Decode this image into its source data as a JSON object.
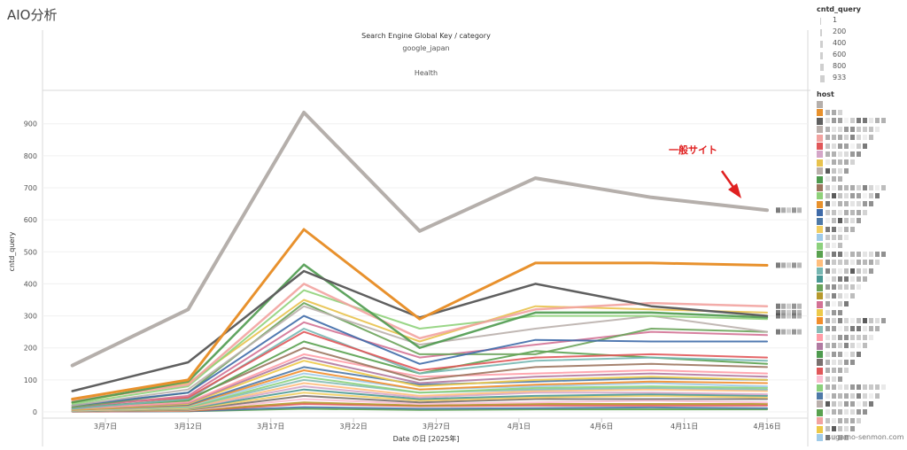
{
  "app": {
    "title": "AIO分析"
  },
  "chart_data": {
    "type": "line",
    "header": {
      "title": "Search Engine Global Key / category",
      "engine": "google_japan",
      "category": "Health"
    },
    "xlabel": "Date の日 [2025年]",
    "ylabel": "cntd_query",
    "ylim": [
      0,
      960
    ],
    "yticks": [
      0,
      100,
      200,
      300,
      400,
      500,
      600,
      700,
      800,
      900
    ],
    "x_dates": [
      "3月5日",
      "3月12日",
      "3月19日",
      "3月26日",
      "4月2日",
      "4月9日",
      "4月16日"
    ],
    "x_ticks": [
      {
        "date": "3月7日",
        "label": "3月7日"
      },
      {
        "date": "3月12日",
        "label": "3月12日"
      },
      {
        "date": "3月17日",
        "label": "3月17日"
      },
      {
        "date": "3月22日",
        "label": "3月22日"
      },
      {
        "date": "3月27日",
        "label": "3月27日"
      },
      {
        "date": "4月1日",
        "label": "4月1日"
      },
      {
        "date": "4月6日",
        "label": "4月6日"
      },
      {
        "date": "4月11日",
        "label": "4月11日"
      },
      {
        "date": "4月16日",
        "label": "4月16日"
      }
    ],
    "annotation": {
      "text": "一般サイト",
      "color": "#e02020"
    },
    "series": [
      {
        "color": "#b5afab",
        "width": 4,
        "values": [
          145,
          320,
          935,
          565,
          730,
          670,
          630
        ]
      },
      {
        "color": "#e8912d",
        "width": 3,
        "values": [
          40,
          100,
          570,
          290,
          465,
          465,
          458
        ]
      },
      {
        "color": "#5f5f5f",
        "width": 2.5,
        "values": [
          65,
          155,
          440,
          295,
          400,
          330,
          300
        ]
      },
      {
        "color": "#4e9a4e",
        "width": 2.5,
        "values": [
          30,
          95,
          460,
          200,
          310,
          310,
          295
        ]
      },
      {
        "color": "#f2a3a0",
        "width": 2.5,
        "values": [
          35,
          85,
          400,
          230,
          320,
          340,
          330
        ]
      },
      {
        "color": "#8fd17a",
        "width": 2,
        "values": [
          25,
          80,
          380,
          260,
          300,
          300,
          290
        ]
      },
      {
        "color": "#e8c24d",
        "width": 2,
        "values": [
          30,
          90,
          350,
          220,
          330,
          320,
          310
        ]
      },
      {
        "color": "#bab0ac",
        "width": 2,
        "values": [
          20,
          70,
          330,
          210,
          260,
          300,
          250
        ]
      },
      {
        "color": "#3e6aa8",
        "width": 2,
        "values": [
          20,
          60,
          300,
          150,
          225,
          220,
          220
        ]
      },
      {
        "color": "#6aa35a",
        "width": 2,
        "values": [
          15,
          60,
          340,
          180,
          180,
          260,
          250
        ]
      },
      {
        "color": "#d37295",
        "width": 2,
        "values": [
          15,
          50,
          280,
          170,
          210,
          250,
          240
        ]
      },
      {
        "color": "#e15759",
        "width": 2,
        "values": [
          20,
          45,
          250,
          130,
          170,
          180,
          170
        ]
      },
      {
        "color": "#76b7b2",
        "width": 2,
        "values": [
          10,
          40,
          260,
          120,
          160,
          170,
          160
        ]
      },
      {
        "color": "#59a14f",
        "width": 2,
        "values": [
          15,
          35,
          220,
          120,
          190,
          170,
          150
        ]
      },
      {
        "color": "#9c755f",
        "width": 2,
        "values": [
          12,
          40,
          200,
          100,
          140,
          150,
          140
        ]
      },
      {
        "color": "#ff9da7",
        "width": 2,
        "values": [
          10,
          30,
          180,
          110,
          120,
          130,
          120
        ]
      },
      {
        "color": "#b07aa1",
        "width": 2,
        "values": [
          10,
          28,
          170,
          90,
          110,
          120,
          110
        ]
      },
      {
        "color": "#edc948",
        "width": 2,
        "values": [
          8,
          25,
          160,
          80,
          100,
          110,
          100
        ]
      },
      {
        "color": "#4e79a7",
        "width": 2,
        "values": [
          8,
          22,
          140,
          85,
          95,
          105,
          100
        ]
      },
      {
        "color": "#f28e2b",
        "width": 2,
        "values": [
          6,
          20,
          130,
          70,
          85,
          95,
          90
        ]
      },
      {
        "color": "#a0cbe8",
        "width": 2,
        "values": [
          5,
          18,
          120,
          70,
          80,
          90,
          80
        ]
      },
      {
        "color": "#8cd17d",
        "width": 2,
        "values": [
          5,
          15,
          110,
          60,
          75,
          80,
          75
        ]
      },
      {
        "color": "#86bcb6",
        "width": 2,
        "values": [
          5,
          15,
          100,
          60,
          70,
          75,
          70
        ]
      },
      {
        "color": "#ffbe7d",
        "width": 2,
        "values": [
          4,
          12,
          90,
          50,
          65,
          70,
          65
        ]
      },
      {
        "color": "#d4a6c8",
        "width": 2,
        "values": [
          4,
          12,
          80,
          45,
          60,
          60,
          55
        ]
      },
      {
        "color": "#499894",
        "width": 2,
        "values": [
          3,
          10,
          70,
          40,
          50,
          55,
          50
        ]
      },
      {
        "color": "#f1ce63",
        "width": 2,
        "values": [
          3,
          8,
          60,
          35,
          45,
          50,
          45
        ]
      },
      {
        "color": "#79706e",
        "width": 2,
        "values": [
          2,
          6,
          50,
          30,
          40,
          40,
          40
        ]
      },
      {
        "color": "#fabfd2",
        "width": 2,
        "values": [
          2,
          5,
          40,
          25,
          30,
          35,
          30
        ]
      },
      {
        "color": "#b6992d",
        "width": 2,
        "values": [
          2,
          4,
          30,
          20,
          25,
          25,
          25
        ]
      },
      {
        "color": "#e15759",
        "width": 2,
        "values": [
          1,
          3,
          25,
          18,
          20,
          20,
          20
        ]
      },
      {
        "color": "#4e79a7",
        "width": 2,
        "values": [
          1,
          2,
          15,
          10,
          12,
          14,
          12
        ]
      },
      {
        "color": "#59a14f",
        "width": 2,
        "values": [
          1,
          2,
          10,
          6,
          8,
          8,
          8
        ]
      }
    ]
  },
  "legends": {
    "size": {
      "title": "cntd_query",
      "items": [
        {
          "label": "1",
          "level": 0.05
        },
        {
          "label": "200",
          "level": 0.2
        },
        {
          "label": "400",
          "level": 0.4
        },
        {
          "label": "600",
          "level": 0.6
        },
        {
          "label": "800",
          "level": 0.8
        },
        {
          "label": "933",
          "level": 1.0
        }
      ]
    },
    "host": {
      "title": "host",
      "swatches": [
        "#b5afab",
        "#e8912d",
        "#5f5f5f",
        "#bab0ac",
        "#f2a3a0",
        "#e15759",
        "#d4a6c8",
        "#e8c24d",
        "#bab0ac",
        "#4e9a4e",
        "#9c755f",
        "#8fd17a",
        "#e8912d",
        "#3e6aa8",
        "#4e79a7",
        "#f1ce63",
        "#a0cbe8",
        "#8cd17d",
        "#59a14f",
        "#ffbe7d",
        "#76b7b2",
        "#499894",
        "#6aa35a",
        "#b6992d",
        "#d37295",
        "#edc948",
        "#f28e2b",
        "#86bcb6",
        "#ff9da7",
        "#b07aa1",
        "#4e9a4e",
        "#79706e",
        "#e15759",
        "#fabfd2",
        "#8cd17d",
        "#4e79a7",
        "#bab0ac",
        "#59a14f",
        "#f2a3a0",
        "#edc948",
        "#a0cbe8"
      ],
      "last_label": "sugamo-senmon.com"
    }
  }
}
